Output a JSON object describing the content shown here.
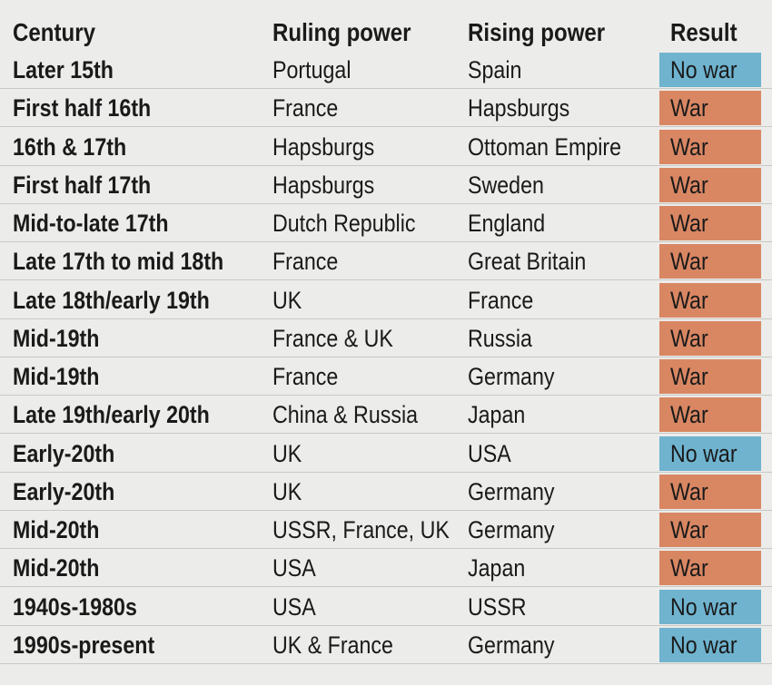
{
  "colors": {
    "background": "#ececea",
    "war": "#d98763",
    "no_war": "#6fb3cf",
    "text": "#1a1a1a",
    "divider": "#c8c8c4"
  },
  "chart_data": {
    "type": "table",
    "columns": [
      "Century",
      "Ruling power",
      "Rising power",
      "Result"
    ],
    "rows": [
      {
        "century": "Later 15th",
        "ruling": "Portugal",
        "rising": "Spain",
        "result": "No war"
      },
      {
        "century": "First half 16th",
        "ruling": "France",
        "rising": "Hapsburgs",
        "result": "War"
      },
      {
        "century": "16th & 17th",
        "ruling": "Hapsburgs",
        "rising": "Ottoman Empire",
        "result": "War"
      },
      {
        "century": "First half 17th",
        "ruling": "Hapsburgs",
        "rising": "Sweden",
        "result": "War"
      },
      {
        "century": "Mid-to-late 17th",
        "ruling": "Dutch Republic",
        "rising": "England",
        "result": "War"
      },
      {
        "century": "Late 17th to mid 18th",
        "ruling": "France",
        "rising": "Great Britain",
        "result": "War"
      },
      {
        "century": "Late 18th/early 19th",
        "ruling": "UK",
        "rising": "France",
        "result": "War"
      },
      {
        "century": "Mid-19th",
        "ruling": "France & UK",
        "rising": "Russia",
        "result": "War"
      },
      {
        "century": "Mid-19th",
        "ruling": "France",
        "rising": "Germany",
        "result": "War"
      },
      {
        "century": "Late 19th/early 20th",
        "ruling": "China & Russia",
        "rising": "Japan",
        "result": "War"
      },
      {
        "century": "Early-20th",
        "ruling": "UK",
        "rising": "USA",
        "result": "No war"
      },
      {
        "century": "Early-20th",
        "ruling": "UK",
        "rising": "Germany",
        "result": "War"
      },
      {
        "century": "Mid-20th",
        "ruling": "USSR, France, UK",
        "rising": "Germany",
        "result": "War"
      },
      {
        "century": "Mid-20th",
        "ruling": "USA",
        "rising": "Japan",
        "result": "War"
      },
      {
        "century": "1940s-1980s",
        "ruling": "USA",
        "rising": "USSR",
        "result": "No war"
      },
      {
        "century": "1990s-present",
        "ruling": "UK & France",
        "rising": "Germany",
        "result": "No war"
      }
    ]
  }
}
